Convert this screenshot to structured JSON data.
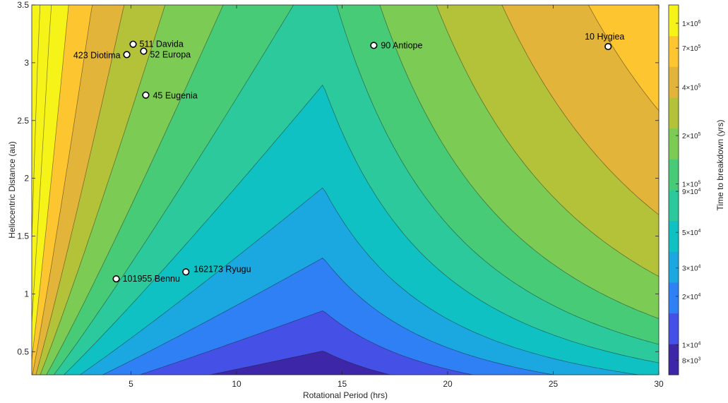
{
  "chart_data": {
    "type": "contour",
    "xlabel": "Rotational Period (hrs)",
    "ylabel": "Heliocentric Distance (au)",
    "colorbar_label": "Time to breakdown (yrs)",
    "xlim": [
      0.3,
      30
    ],
    "ylim": [
      0.3,
      3.5
    ],
    "x_ticks": [
      5,
      10,
      15,
      20,
      25,
      30
    ],
    "x_tick_labels": [
      "5",
      "10",
      "15",
      "20",
      "25",
      "30"
    ],
    "y_ticks": [
      0.5,
      1,
      1.5,
      2,
      2.5,
      3,
      3.5
    ],
    "y_tick_labels": [
      "0.5",
      "1",
      "1.5",
      "2",
      "2.5",
      "3",
      "3.5"
    ],
    "colorbar_ticks": [
      {
        "label": "8×10",
        "exp": "3",
        "value": 8000
      },
      {
        "label": "1×10",
        "exp": "4",
        "value": 10000
      },
      {
        "label": "2×10",
        "exp": "4",
        "value": 20000
      },
      {
        "label": "3×10",
        "exp": "4",
        "value": 30000
      },
      {
        "label": "5×10",
        "exp": "4",
        "value": 50000
      },
      {
        "label": "9×10",
        "exp": "4",
        "value": 90000
      },
      {
        "label": "1×10",
        "exp": "5",
        "value": 100000
      },
      {
        "label": "2×10",
        "exp": "5",
        "value": 200000
      },
      {
        "label": "4×10",
        "exp": "5",
        "value": 400000
      },
      {
        "label": "7×10",
        "exp": "5",
        "value": 700000
      },
      {
        "label": "1×10",
        "exp": "6",
        "value": 1000000
      }
    ],
    "colormap": [
      "#3e26a8",
      "#4450e6",
      "#2f7ff5",
      "#1ba8e0",
      "#10c1c3",
      "#2bc99c",
      "#48cb77",
      "#7ccb54",
      "#b4c23a",
      "#e3b43a",
      "#fdc530",
      "#f5f318"
    ],
    "peak_period": 14.1,
    "points": [
      {
        "name": "511 Davida",
        "x": 5.1,
        "y": 3.16
      },
      {
        "name": "423 Diotima",
        "x": 4.8,
        "y": 3.07
      },
      {
        "name": "52 Europa",
        "x": 5.6,
        "y": 3.1
      },
      {
        "name": "45 Eugenia",
        "x": 5.7,
        "y": 2.72
      },
      {
        "name": "90 Antiope",
        "x": 16.5,
        "y": 3.15
      },
      {
        "name": "10 Hygiea",
        "x": 27.6,
        "y": 3.14
      },
      {
        "name": "101955 Bennu",
        "x": 4.3,
        "y": 1.13
      },
      {
        "name": "162173 Ryugu",
        "x": 7.6,
        "y": 1.19
      }
    ]
  }
}
